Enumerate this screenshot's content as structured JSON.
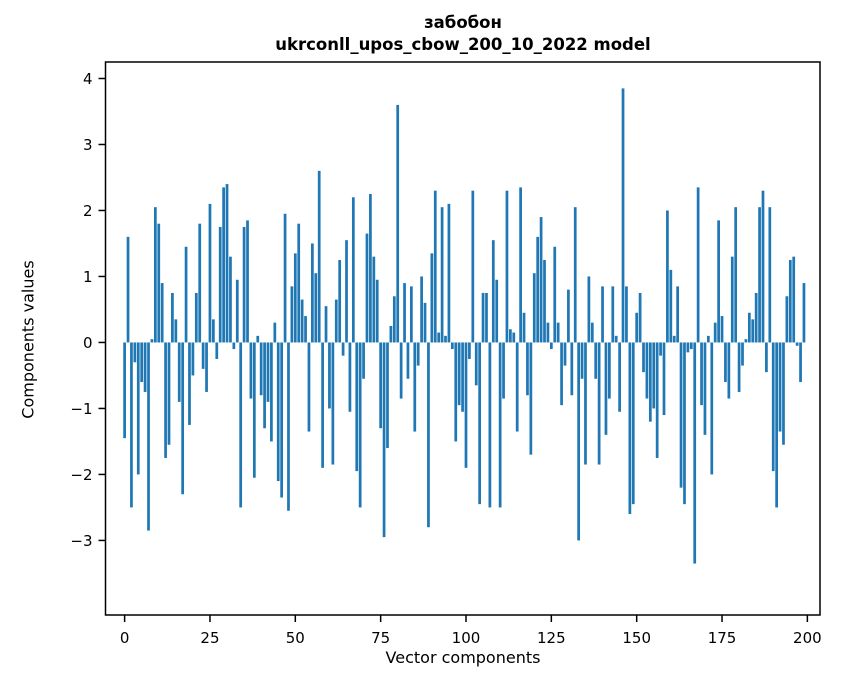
{
  "figure": {
    "title_line1": "забобон",
    "title_line2": "ukrconll_upos_cbow_200_10_2022 model"
  },
  "chart_data": {
    "type": "bar",
    "title": "забобон ukrconll_upos_cbow_200_10_2022 model",
    "xlabel": "Vector components",
    "ylabel": "Components values",
    "x_ticks": [
      0,
      25,
      50,
      75,
      100,
      125,
      150,
      175,
      200
    ],
    "y_ticks": [
      4,
      3,
      2,
      1,
      0,
      -1,
      -2,
      -3
    ],
    "y_tick_labels": [
      "4",
      "3",
      "2",
      "1",
      "0",
      "−1",
      "−2",
      "−3"
    ],
    "xlim": [
      -5.6,
      203.7
    ],
    "ylim": [
      -4.13,
      4.25
    ],
    "grid": false,
    "legend": "none",
    "bar_color": "#1f77b4",
    "n_components": 200,
    "values": [
      -1.45,
      1.6,
      -2.5,
      -0.3,
      -2.0,
      -0.6,
      -0.75,
      -2.85,
      0.05,
      2.05,
      1.8,
      0.9,
      -1.75,
      -1.55,
      0.75,
      0.35,
      -0.9,
      -2.3,
      1.45,
      -1.25,
      -0.5,
      0.75,
      1.8,
      -0.4,
      -0.75,
      2.1,
      0.35,
      -0.25,
      1.75,
      2.35,
      2.4,
      1.3,
      -0.1,
      0.95,
      -2.5,
      1.75,
      1.85,
      -0.85,
      -2.05,
      0.1,
      -0.8,
      -1.3,
      -0.9,
      -1.5,
      0.3,
      -2.1,
      -2.35,
      1.95,
      -2.55,
      0.85,
      1.35,
      1.8,
      0.65,
      0.4,
      -1.35,
      1.5,
      1.05,
      2.6,
      -1.9,
      0.55,
      -1.0,
      -1.85,
      0.65,
      1.25,
      -0.2,
      1.55,
      -1.05,
      2.2,
      -1.95,
      -2.5,
      -0.55,
      1.65,
      2.25,
      1.3,
      0.95,
      -1.3,
      -2.95,
      -1.6,
      0.25,
      0.7,
      3.6,
      -0.85,
      0.9,
      -0.55,
      0.85,
      -1.35,
      -0.35,
      1.0,
      0.6,
      -2.8,
      1.35,
      2.3,
      0.15,
      2.05,
      0.1,
      2.1,
      -0.1,
      -1.5,
      -0.95,
      -1.05,
      -1.9,
      -0.25,
      2.3,
      -0.65,
      -2.45,
      0.75,
      0.75,
      -2.5,
      1.55,
      0.95,
      -2.5,
      -0.85,
      2.3,
      0.2,
      0.15,
      -1.35,
      2.35,
      0.45,
      -0.8,
      -1.7,
      1.05,
      1.6,
      1.9,
      1.25,
      0.3,
      -0.1,
      1.45,
      0.3,
      -0.95,
      -0.35,
      0.8,
      -0.8,
      2.05,
      -3.0,
      -0.55,
      -1.85,
      1.0,
      0.3,
      -0.55,
      -1.85,
      0.85,
      -1.4,
      -0.85,
      0.85,
      0.1,
      -1.05,
      3.85,
      0.85,
      -2.6,
      -2.45,
      0.45,
      0.75,
      -0.45,
      -0.85,
      -1.2,
      -1.0,
      -1.75,
      -0.2,
      -1.1,
      2.0,
      1.1,
      0.1,
      0.85,
      -2.2,
      -2.45,
      -0.15,
      -0.1,
      -3.35,
      2.35,
      -0.95,
      -1.4,
      0.1,
      -2.0,
      0.3,
      1.85,
      0.4,
      -0.6,
      -0.85,
      1.3,
      2.05,
      -0.75,
      -0.35,
      0.05,
      0.45,
      0.35,
      0.75,
      2.05,
      2.3,
      -0.45,
      2.05,
      -1.95,
      -2.5,
      -1.35,
      -1.55,
      0.7,
      1.25,
      1.3,
      -0.05,
      -0.6,
      0.9
    ]
  }
}
